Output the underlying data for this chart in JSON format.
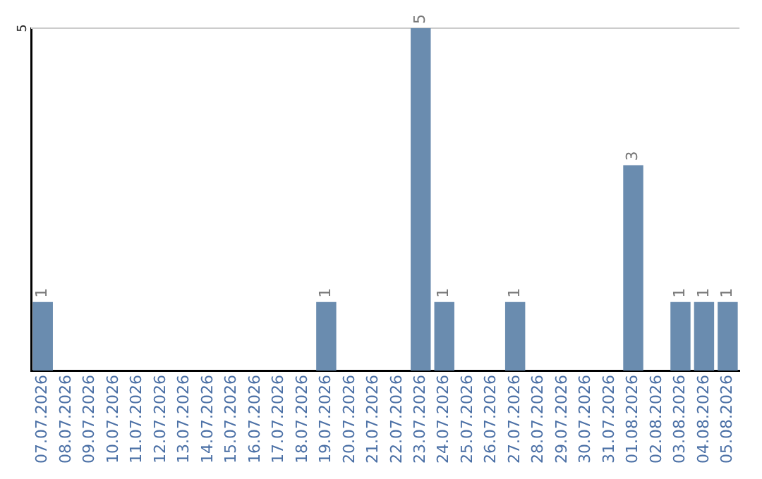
{
  "chart_data": {
    "type": "bar",
    "categories": [
      "07.07.2026",
      "08.07.2026",
      "09.07.2026",
      "10.07.2026",
      "11.07.2026",
      "12.07.2026",
      "13.07.2026",
      "14.07.2026",
      "15.07.2026",
      "16.07.2026",
      "17.07.2026",
      "18.07.2026",
      "19.07.2026",
      "20.07.2026",
      "21.07.2026",
      "22.07.2026",
      "23.07.2026",
      "24.07.2026",
      "25.07.2026",
      "26.07.2026",
      "27.07.2026",
      "28.07.2026",
      "29.07.2026",
      "30.07.2026",
      "31.07.2026",
      "01.08.2026",
      "02.08.2026",
      "03.08.2026",
      "04.08.2026",
      "05.08.2026"
    ],
    "values": [
      1,
      0,
      0,
      0,
      0,
      0,
      0,
      0,
      0,
      0,
      0,
      0,
      1,
      0,
      0,
      0,
      5,
      1,
      0,
      0,
      1,
      0,
      0,
      0,
      0,
      3,
      0,
      1,
      1,
      1
    ],
    "value_labels": [
      "1",
      null,
      null,
      null,
      null,
      null,
      null,
      null,
      null,
      null,
      null,
      null,
      "1",
      null,
      null,
      null,
      "5",
      "1",
      null,
      null,
      "1",
      null,
      null,
      null,
      null,
      "3",
      null,
      "1",
      "1",
      "1"
    ],
    "color": "#6a8caf",
    "ylim": [
      0,
      5
    ],
    "yticks": [
      5
    ],
    "ref_lines": [
      {
        "axis": "y",
        "value": 5,
        "color": "#cccccc"
      }
    ]
  }
}
